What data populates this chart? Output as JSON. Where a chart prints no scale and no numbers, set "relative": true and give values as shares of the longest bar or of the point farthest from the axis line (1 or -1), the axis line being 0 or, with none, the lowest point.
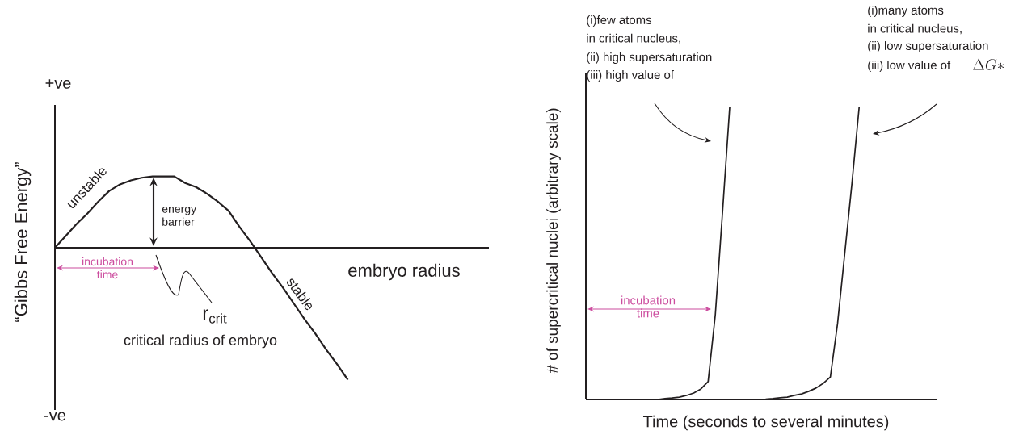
{
  "chart_data": [
    {
      "type": "line",
      "relative": true,
      "xlabel": "embryo radius",
      "ylabel": "“Gibbs Free Energy”",
      "categories": [
        null,
        null,
        null,
        null,
        null,
        null,
        null,
        null,
        null,
        null,
        null,
        null,
        null,
        null,
        null,
        null,
        null,
        null,
        null,
        null,
        null,
        null,
        null,
        null,
        null,
        null,
        null,
        null,
        null,
        null,
        null,
        null,
        null,
        null,
        null,
        null,
        null,
        null,
        null,
        null,
        null
      ],
      "series": [
        {
          "color": "#231f20",
          "values": [
            0,
            0.09,
            0.18,
            0.26,
            0.35,
            0.43,
            0.48,
            0.51,
            0.53,
            0.54,
            0.54,
            0.54,
            0.49,
            0.46,
            0.41,
            0.35,
            0.28,
            0.16,
            0.05,
            -0.07,
            -0.19,
            -0.3,
            -0.42,
            -0.54,
            -0.65,
            -0.77,
            -0.88,
            -1,
            null,
            null,
            null,
            null,
            null,
            null,
            null,
            null,
            null,
            null,
            null,
            null,
            null
          ]
        }
      ],
      "annotations": [
        "+ve",
        "-ve",
        "unstable",
        "energy barrier",
        "incubation time",
        "stable",
        "r$_{crit}$",
        "critical radius of embryo"
      ]
    },
    {
      "type": "line",
      "relative": true,
      "xlabel": "Time (seconds to several minutes)",
      "ylabel": "# of supercritical nuclei (arbitrary scale)",
      "categories": [
        null,
        null,
        null,
        null,
        null,
        null,
        null,
        null,
        null,
        null,
        null,
        null,
        null,
        null,
        null,
        null,
        null,
        null,
        null,
        null,
        null,
        null,
        null,
        null,
        null,
        null,
        null,
        null,
        null,
        null,
        null,
        null,
        null,
        null,
        null,
        null,
        null,
        null,
        null,
        null,
        null,
        null,
        null,
        null,
        null,
        null,
        null,
        null,
        null
      ],
      "series": [
        {
          "color": "#231f20",
          "values": [
            0,
            0,
            0,
            0,
            0,
            0,
            0,
            0,
            0,
            0,
            0,
            0.003,
            0.005,
            0.008,
            0.014,
            0.022,
            0.036,
            0.061,
            0.29,
            0.64,
            1,
            null,
            null,
            null,
            null,
            null,
            null,
            null,
            null,
            null,
            null,
            null,
            null,
            null,
            null,
            null,
            null,
            null,
            null,
            null,
            null,
            null,
            null,
            null,
            null,
            null,
            null,
            null,
            null
          ]
        },
        {
          "color": "#231f20",
          "values": [
            0,
            0,
            0,
            0,
            0,
            0,
            0,
            0,
            0,
            0,
            0,
            0,
            0,
            0,
            0,
            0,
            0,
            0,
            0,
            0,
            0,
            0,
            0,
            0,
            0,
            0.001,
            0.003,
            0.006,
            0.008,
            0.014,
            0.019,
            0.028,
            0.039,
            0.055,
            0.077,
            0.26,
            0.5,
            0.74,
            1,
            null,
            null,
            null,
            null,
            null,
            null,
            null,
            null,
            null,
            null
          ]
        }
      ],
      "annotations": [
        "(i)few atoms",
        "in critical nucleus,",
        "(ii) high supersaturation",
        "(iii) high value of",
        "(i)many atoms",
        "in critical nucleus,",
        "(ii) low supersaturation",
        "(iii) low value of",
        "incubation time",
        "\\Delta G*"
      ]
    }
  ]
}
